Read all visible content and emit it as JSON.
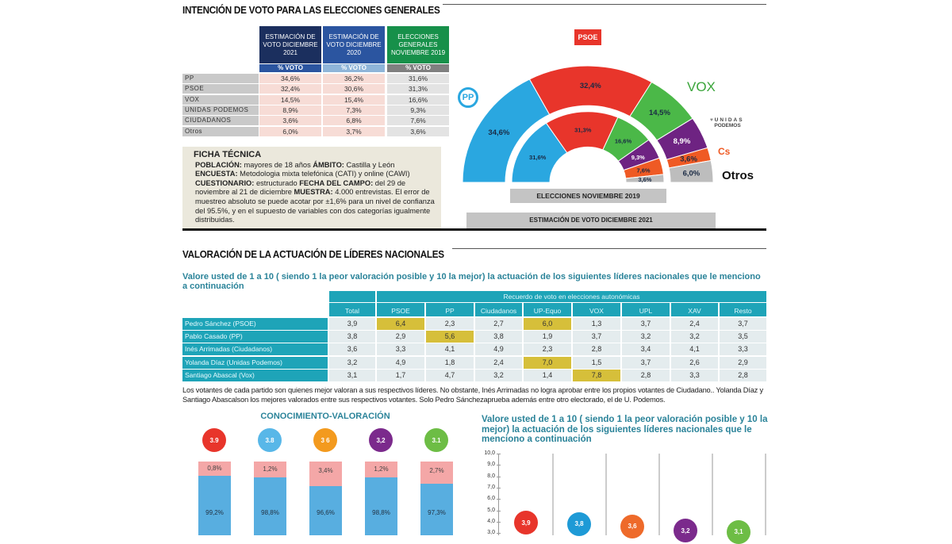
{
  "section1": {
    "title": "INTENCIÓN DE VOTO PARA LAS ELECCIONES GENERALES",
    "table": {
      "columns": [
        {
          "label": "ESTIMACIÓN DE VOTO DICIEMBRE 2021",
          "sub": "% VOTO",
          "color": "#1b2f5e",
          "subcolor": "#2b55a0"
        },
        {
          "label": "ESTIMACIÓN DE VOTO DICIEMBRE 2020",
          "sub": "% VOTO",
          "color": "#2b55a0",
          "subcolor": "#8fb5d9"
        },
        {
          "label": "ELECCIONES GENERALES NOVIEMBRE 2019",
          "sub": "% VOTO",
          "color": "#17904a",
          "subcolor": "#808080"
        }
      ],
      "rows": [
        {
          "party": "PP",
          "values": [
            "34,6%",
            "36,2%",
            "31,6%"
          ]
        },
        {
          "party": "PSOE",
          "values": [
            "32,4%",
            "30,6%",
            "31,3%"
          ]
        },
        {
          "party": "VOX",
          "values": [
            "14,5%",
            "15,4%",
            "16,6%"
          ]
        },
        {
          "party": "UNIDAS PODEMOS",
          "values": [
            "8,9%",
            "7,3%",
            "9,3%"
          ]
        },
        {
          "party": "CIUDADANOS",
          "values": [
            "3,6%",
            "6,8%",
            "7,6%"
          ]
        },
        {
          "party": "Otros",
          "values": [
            "6,0%",
            "3,7%",
            "3,6%"
          ]
        }
      ]
    },
    "ficha": {
      "title": "FICHA TÉCNICA",
      "k1": "POBLACIÓN:",
      "t1": " mayores de 18 años ",
      "k2": "ÁMBITO:",
      "t2": " Castilla y León ",
      "k3": "ENCUESTA:",
      "t3": " Metodologia mixta telefónica  (CATI) y online (CAWI) ",
      "k4": "CUESTIONARIO:",
      "t4": " estructurado ",
      "k5": "FECHA DEL CAMPO:",
      "t5": " del 29 de noviembre al 21 de diciembre ",
      "k6": "MUESTRA:",
      "t6": " 4.000 entrevistas. El  error de muestreo absoluto se puede acotar por  ±1,6% para un nivel de confianza del 95.5%, y en el supuesto de variables con dos categorías igualmente distribuidas."
    }
  },
  "hemicycle": {
    "parties": [
      {
        "name": "PP",
        "color": "#2aa7e0"
      },
      {
        "name": "PSOE",
        "color": "#e8352b"
      },
      {
        "name": "VOX",
        "color": "#4bb848"
      },
      {
        "name": "UNIDAS PODEMOS",
        "color": "#6e2382"
      },
      {
        "name": "Cs",
        "color": "#ef5a24"
      },
      {
        "name": "Otros",
        "color": "#bdbdbd"
      }
    ],
    "outer": {
      "label": "ESTIMACIÓN DE VOTO DICIEMBRE 2021",
      "values": [
        34.6,
        32.4,
        14.5,
        8.9,
        3.6,
        6.0
      ],
      "texts": [
        "34,6%",
        "32,4%",
        "14,5%",
        "8,9%",
        "3,6%",
        "6,0%"
      ]
    },
    "inner": {
      "label": "ELECCIONES  NOVIEMBRE 2019",
      "values": [
        31.6,
        31.3,
        16.6,
        9.3,
        7.6,
        3.6
      ],
      "texts": [
        "31,6%",
        "31,3%",
        "16,6%",
        "9,3%",
        "7,6%",
        "3,6%"
      ]
    },
    "logos": {
      "psoe": "PSOE",
      "pp": "PP",
      "vox": "VOX",
      "up1": "UNIDAS",
      "up2": "PODEMOS",
      "cs": "Cs",
      "otros": "Otros"
    }
  },
  "section2": {
    "title": "VALORACIÓN DE LA ACTUACIÓN DE LÍDERES NACIONALES",
    "question": "Valore usted de 1 a 10 ( siendo 1 la peor valoración posible y 10 la mejor) la actuación de los siguientes líderes nacionales que le menciono a continuación",
    "group_header": "Recuerdo de voto en elecciones autonómicas",
    "columns": [
      "Total",
      "PSOE",
      "PP",
      "Ciudadanos",
      "UP-Equo",
      "VOX",
      "UPL",
      "XAV",
      "Resto"
    ],
    "rows": [
      {
        "leader": "Pedro Sánchez (PSOE)",
        "values": [
          "3,9",
          "6,4",
          "2,3",
          "2,7",
          "6,0",
          "1,3",
          "3,7",
          "2,4",
          "3,7"
        ],
        "highlight": [
          1,
          4
        ]
      },
      {
        "leader": "Pablo Casado (PP)",
        "values": [
          "3,8",
          "2,9",
          "5,6",
          "3,8",
          "1,9",
          "3,7",
          "3,2",
          "3,2",
          "3,5"
        ],
        "highlight": [
          2
        ]
      },
      {
        "leader": "Inés Arrimadas (Ciudadanos)",
        "values": [
          "3,6",
          "3,3",
          "4,1",
          "4,9",
          "2,3",
          "2,8",
          "3,4",
          "4,1",
          "3,3"
        ],
        "highlight": []
      },
      {
        "leader": "Yolanda Díaz (Unidas Podemos)",
        "values": [
          "3,2",
          "4,9",
          "1,8",
          "2,4",
          "7,0",
          "1,5",
          "3,7",
          "2,6",
          "2,9"
        ],
        "highlight": [
          4
        ]
      },
      {
        "leader": "Santiago Abascal (Vox)",
        "values": [
          "3,1",
          "1,7",
          "4,7",
          "3,2",
          "1,4",
          "7,8",
          "2,8",
          "3,3",
          "2,8"
        ],
        "highlight": [
          5
        ]
      }
    ],
    "paragraph": "Los votantes de cada partido son quienes mejor valoran a sus respectivos líderes. No obstante, Inés Arrimadas no logra aprobar entre los propios votantes de Ciudadano.. Yolanda Díaz y Santiago Abascalson los mejores valorados entre sus respectivos votantes. Solo Pedro Sánchezaprueba además entre otro electorado, el de U. Podemos."
  },
  "chart_data": [
    {
      "type": "bar",
      "title": "CONOCIMIENTO-VALORACIÓN",
      "stacked": true,
      "ratings": [
        "3.9",
        "3.8",
        "3 6",
        "3,2",
        "3.1"
      ],
      "colors": [
        "#e8352b",
        "#58b7e8",
        "#f39a1e",
        "#7b2a8c",
        "#6dbd45"
      ],
      "series": [
        {
          "values": [
            0.8,
            1.2,
            3.4,
            1.2,
            2.7
          ],
          "labels": [
            "0,8%",
            "1,2%",
            "3,4%",
            "1,2%",
            "2,7%"
          ],
          "color": "#f4a7a7"
        },
        {
          "values": [
            99.2,
            98.8,
            96.6,
            98.8,
            97.3
          ],
          "labels": [
            "99,2%",
            "98,8%",
            "96,6%",
            "98,8%",
            "97,3%"
          ],
          "color": "#58aee0"
        }
      ]
    },
    {
      "type": "scatter",
      "title": "Valore usted de 1 a 10 ( siendo 1 la peor valoración posible y 10 la mejor) la actuación de los siguientes líderes nacionales que le menciono a continuación",
      "y": [
        3.9,
        3.8,
        3.6,
        3.2,
        3.1
      ],
      "labels": [
        "3,9",
        "3,8",
        "3,6",
        "3,2",
        "3,1"
      ],
      "colors": [
        "#e8352b",
        "#1e9ad6",
        "#ee6a2a",
        "#7b2a8c",
        "#6dbd45"
      ],
      "ylim": [
        0,
        10
      ],
      "yticks": [
        "10,0",
        "9,0",
        "8,0",
        "7,0",
        "6,0",
        "5,0",
        "4,0",
        "3,0"
      ],
      "grid": true
    }
  ]
}
